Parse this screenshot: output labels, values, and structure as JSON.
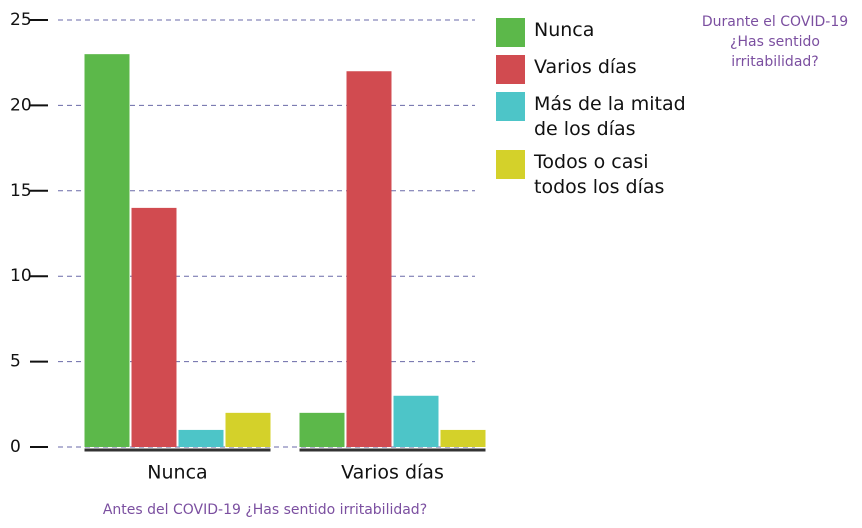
{
  "chart_data": {
    "type": "bar",
    "title": "Durante el COVID-19 ¿Has sentido irritabilidad?",
    "x_label": "Antes del COVID-19 ¿Has sentido irritabilidad?",
    "categories": [
      "Nunca",
      "Varios días"
    ],
    "series": [
      {
        "name": "Nunca",
        "color": "#5cb84a",
        "values": [
          23,
          2
        ]
      },
      {
        "name": "Varios días",
        "color": "#d14b50",
        "values": [
          14,
          22
        ]
      },
      {
        "name": "Más de la mitad de los días",
        "color": "#4dc5c8",
        "values": [
          1,
          3
        ]
      },
      {
        "name": "Todos o casi todos los días",
        "color": "#d4d12a",
        "values": [
          2,
          1
        ]
      }
    ],
    "ylim": [
      0,
      25
    ],
    "yticks": [
      0,
      5,
      10,
      15,
      20,
      25
    ],
    "grid": true,
    "legend": "right"
  }
}
